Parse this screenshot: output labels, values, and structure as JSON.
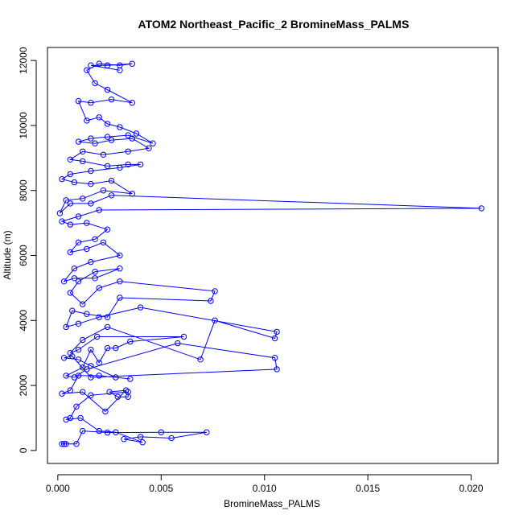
{
  "chart_data": {
    "type": "line",
    "title": "ATOM2 Northeast_Pacific_2 BromineMass_PALMS",
    "xlabel": "BromineMass_PALMS",
    "ylabel": "Altitude (m)",
    "xlim": [
      -0.0005,
      0.0213
    ],
    "ylim": [
      -400,
      12400
    ],
    "x_ticks": [
      0.0,
      0.005,
      0.01,
      0.015,
      0.02
    ],
    "x_tick_labels": [
      "0.000",
      "0.005",
      "0.010",
      "0.015",
      "0.020"
    ],
    "y_ticks": [
      0,
      2000,
      4000,
      6000,
      8000,
      10000,
      12000
    ],
    "y_tick_labels": [
      "0",
      "2000",
      "4000",
      "6000",
      "8000",
      "10000",
      "12000"
    ],
    "grid": false,
    "line_color": "#0000ff",
    "marker": "open-circle",
    "series": [
      {
        "points": [
          [
            0.0002,
            200
          ],
          [
            0.0004,
            200
          ],
          [
            0.0003,
            200
          ],
          [
            0.0009,
            200
          ],
          [
            0.0012,
            600
          ],
          [
            0.0024,
            550
          ],
          [
            0.005,
            560
          ],
          [
            0.0072,
            560
          ],
          [
            0.0055,
            380
          ],
          [
            0.004,
            420
          ],
          [
            0.0032,
            350
          ],
          [
            0.0041,
            250
          ],
          [
            0.0028,
            560
          ],
          [
            0.002,
            600
          ],
          [
            0.0011,
            1000
          ],
          [
            0.0004,
            950
          ],
          [
            0.0006,
            1000
          ],
          [
            0.0009,
            1350
          ],
          [
            0.0016,
            1700
          ],
          [
            0.0034,
            1800
          ],
          [
            0.0034,
            1650
          ],
          [
            0.0029,
            1650
          ],
          [
            0.0025,
            1800
          ],
          [
            0.0033,
            1850
          ],
          [
            0.0023,
            1200
          ],
          [
            0.0012,
            1800
          ],
          [
            0.0002,
            1750
          ],
          [
            0.0006,
            1850
          ],
          [
            0.001,
            2300
          ],
          [
            0.002,
            2300
          ],
          [
            0.0035,
            2200
          ],
          [
            0.0028,
            2250
          ],
          [
            0.0016,
            2600
          ],
          [
            0.001,
            2800
          ],
          [
            0.0003,
            2850
          ],
          [
            0.0007,
            2900
          ],
          [
            0.0016,
            2250
          ],
          [
            0.0106,
            2500
          ],
          [
            0.0105,
            2850
          ],
          [
            0.0058,
            3300
          ],
          [
            0.0014,
            2500
          ],
          [
            0.0008,
            2250
          ],
          [
            0.0004,
            2300
          ],
          [
            0.0012,
            2550
          ],
          [
            0.0016,
            3100
          ],
          [
            0.002,
            2700
          ],
          [
            0.0024,
            3150
          ],
          [
            0.0028,
            3150
          ],
          [
            0.0035,
            3350
          ],
          [
            0.0061,
            3500
          ],
          [
            0.0019,
            3500
          ],
          [
            0.001,
            3100
          ],
          [
            0.0006,
            3000
          ],
          [
            0.0012,
            3400
          ],
          [
            0.0024,
            3800
          ],
          [
            0.0069,
            2800
          ],
          [
            0.0076,
            4000
          ],
          [
            0.0105,
            3450
          ],
          [
            0.0106,
            3650
          ],
          [
            0.004,
            4400
          ],
          [
            0.002,
            4100
          ],
          [
            0.001,
            3900
          ],
          [
            0.0004,
            3800
          ],
          [
            0.0007,
            4300
          ],
          [
            0.0014,
            4200
          ],
          [
            0.0024,
            4100
          ],
          [
            0.003,
            4700
          ],
          [
            0.0074,
            4600
          ],
          [
            0.0076,
            4900
          ],
          [
            0.003,
            5200
          ],
          [
            0.002,
            5000
          ],
          [
            0.0012,
            4500
          ],
          [
            0.0006,
            4850
          ],
          [
            0.001,
            5200
          ],
          [
            0.0018,
            5500
          ],
          [
            0.003,
            5600
          ],
          [
            0.0018,
            5300
          ],
          [
            0.0008,
            5300
          ],
          [
            0.0003,
            5200
          ],
          [
            0.0008,
            5600
          ],
          [
            0.0016,
            5800
          ],
          [
            0.003,
            6000
          ],
          [
            0.0022,
            6400
          ],
          [
            0.0014,
            6200
          ],
          [
            0.0006,
            6100
          ],
          [
            0.001,
            6400
          ],
          [
            0.0018,
            6500
          ],
          [
            0.0024,
            6800
          ],
          [
            0.0014,
            7000
          ],
          [
            0.0006,
            6950
          ],
          [
            0.0002,
            7050
          ],
          [
            0.001,
            7200
          ],
          [
            0.002,
            7400
          ],
          [
            0.0205,
            7450
          ],
          [
            0.0026,
            7850
          ],
          [
            0.0016,
            7600
          ],
          [
            0.0006,
            7600
          ],
          [
            0.0001,
            7300
          ],
          [
            0.0004,
            7700
          ],
          [
            0.0012,
            7750
          ],
          [
            0.0022,
            8000
          ],
          [
            0.0036,
            7900
          ],
          [
            0.0026,
            8300
          ],
          [
            0.0016,
            8200
          ],
          [
            0.0008,
            8250
          ],
          [
            0.0002,
            8350
          ],
          [
            0.0006,
            8500
          ],
          [
            0.0016,
            8600
          ],
          [
            0.003,
            8700
          ],
          [
            0.004,
            8800
          ],
          [
            0.0034,
            8800
          ],
          [
            0.0024,
            8750
          ],
          [
            0.0012,
            8900
          ],
          [
            0.0006,
            8950
          ],
          [
            0.0012,
            9200
          ],
          [
            0.0022,
            9100
          ],
          [
            0.0034,
            9200
          ],
          [
            0.0044,
            9300
          ],
          [
            0.0036,
            9600
          ],
          [
            0.0026,
            9550
          ],
          [
            0.0018,
            9450
          ],
          [
            0.001,
            9500
          ],
          [
            0.0016,
            9600
          ],
          [
            0.0024,
            9650
          ],
          [
            0.0034,
            9700
          ],
          [
            0.0046,
            9450
          ],
          [
            0.0038,
            9750
          ],
          [
            0.003,
            9950
          ],
          [
            0.0024,
            10050
          ],
          [
            0.002,
            10250
          ],
          [
            0.0014,
            10150
          ],
          [
            0.001,
            10750
          ],
          [
            0.0016,
            10700
          ],
          [
            0.0026,
            10800
          ],
          [
            0.0036,
            10700
          ],
          [
            0.0024,
            11100
          ],
          [
            0.0018,
            11300
          ],
          [
            0.0014,
            11700
          ],
          [
            0.002,
            11900
          ],
          [
            0.003,
            11850
          ],
          [
            0.0036,
            11900
          ],
          [
            0.0024,
            11850
          ],
          [
            0.0016,
            11850
          ],
          [
            0.003,
            11700
          ]
        ]
      }
    ]
  }
}
